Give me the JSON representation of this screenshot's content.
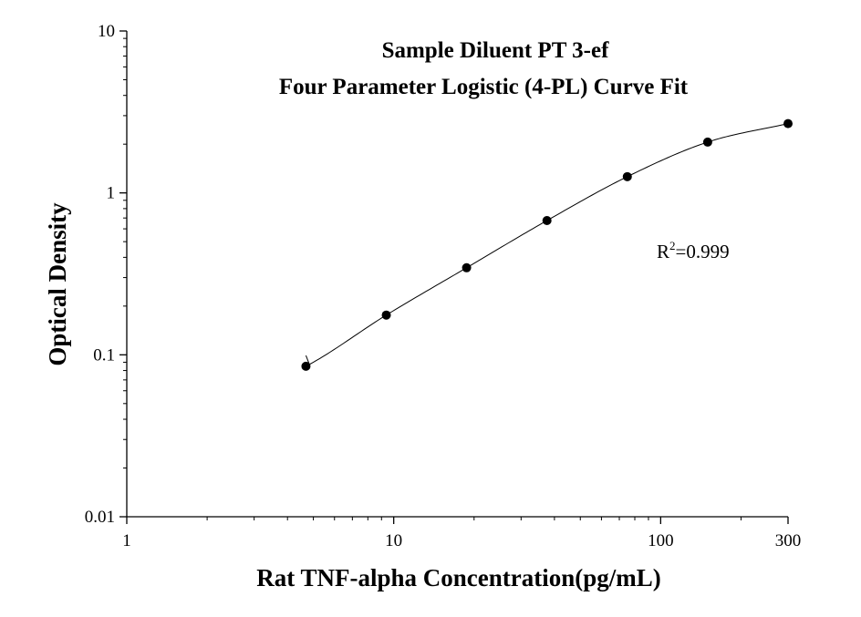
{
  "chart_data": {
    "type": "scatter",
    "title": "Sample Diluent PT 3-ef",
    "subtitle": "Four Parameter Logistic (4-PL) Curve Fit",
    "xlabel": "Rat TNF-alpha Concentration(pg/mL)",
    "ylabel": "Optical Density",
    "x_scale": "log",
    "y_scale": "log",
    "xlim": [
      1,
      300
    ],
    "ylim": [
      0.01,
      10
    ],
    "x_tick_labels": [
      "1",
      "10",
      "100",
      "300"
    ],
    "x_ticks": [
      1,
      10,
      100,
      300
    ],
    "y_tick_labels": [
      "0.01",
      "0.1",
      "1",
      "10"
    ],
    "y_ticks": [
      0.01,
      0.1,
      1,
      10
    ],
    "grid": false,
    "points": {
      "x": [
        4.69,
        9.38,
        18.75,
        37.5,
        75,
        150,
        300
      ],
      "y": [
        0.085,
        0.176,
        0.345,
        0.675,
        1.26,
        2.06,
        2.68
      ]
    },
    "fit": {
      "model": "4-PL",
      "x_range": [
        4.69,
        300
      ]
    },
    "annotation": {
      "r_base": "R",
      "r_sup": "2",
      "r_value": "=0.999"
    }
  }
}
